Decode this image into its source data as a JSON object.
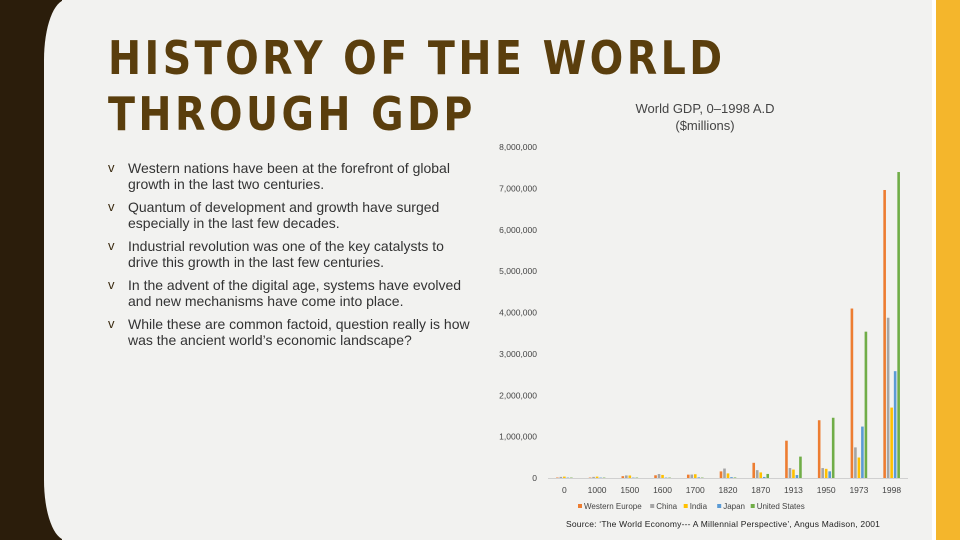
{
  "slide": {
    "title": "HISTORY OF THE WORLD THROUGH GDP",
    "bullets": [
      "Western nations have been at the forefront of global growth in the last two centuries.",
      "Quantum of development and growth have surged especially in the last few decades.",
      "Industrial revolution was one of the key catalysts to drive this growth in the last few centuries.",
      "In the advent of the digital age, systems have evolved and new mechanisms have come into place.",
      "While these are common factoid, question really is how was the ancient world’s economic landscape?"
    ],
    "bullet_marker": "v",
    "source": "Source: ‘The World Economy--- A Millennial Perspective’, Angus Madison, 2001",
    "colors": {
      "band_dark": "#2b1d0b",
      "band_accent": "#f4b62c",
      "title": "#5a3e0d"
    }
  },
  "chart_data": {
    "type": "bar",
    "title": "World GDP, 0–1998 A.D",
    "subtitle": "($millions)",
    "categories": [
      "0",
      "1000",
      "1500",
      "1600",
      "1700",
      "1820",
      "1870",
      "1913",
      "1950",
      "1973",
      "1998"
    ],
    "series": [
      {
        "name": "Western Europe",
        "color": "#ed7d31",
        "values": [
          11000,
          10000,
          44000,
          66000,
          81000,
          160000,
          367000,
          902000,
          1396000,
          4096000,
          6961000
        ]
      },
      {
        "name": "China",
        "color": "#a5a5a5",
        "values": [
          27000,
          27000,
          62000,
          96000,
          83000,
          229000,
          190000,
          241000,
          240000,
          740000,
          3873000
        ]
      },
      {
        "name": "India",
        "color": "#ffc000",
        "values": [
          34000,
          34000,
          61000,
          74000,
          91000,
          111000,
          135000,
          204000,
          222000,
          495000,
          1702000
        ]
      },
      {
        "name": "Japan",
        "color": "#5b9bd5",
        "values": [
          1200,
          3200,
          7700,
          9600,
          15400,
          20700,
          25400,
          71700,
          161000,
          1243000,
          2582000
        ]
      },
      {
        "name": "United States",
        "color": "#70ad47",
        "values": [
          300,
          500,
          800,
          600,
          500,
          12500,
          98000,
          517000,
          1456000,
          3537000,
          7395000
        ]
      }
    ],
    "ylim": [
      0,
      8000000
    ],
    "yticks": [
      "0",
      "1,000,000",
      "2,000,000",
      "3,000,000",
      "4,000,000",
      "5,000,000",
      "6,000,000",
      "7,000,000",
      "8,000,000"
    ],
    "grid": false,
    "legend": "bottom"
  }
}
